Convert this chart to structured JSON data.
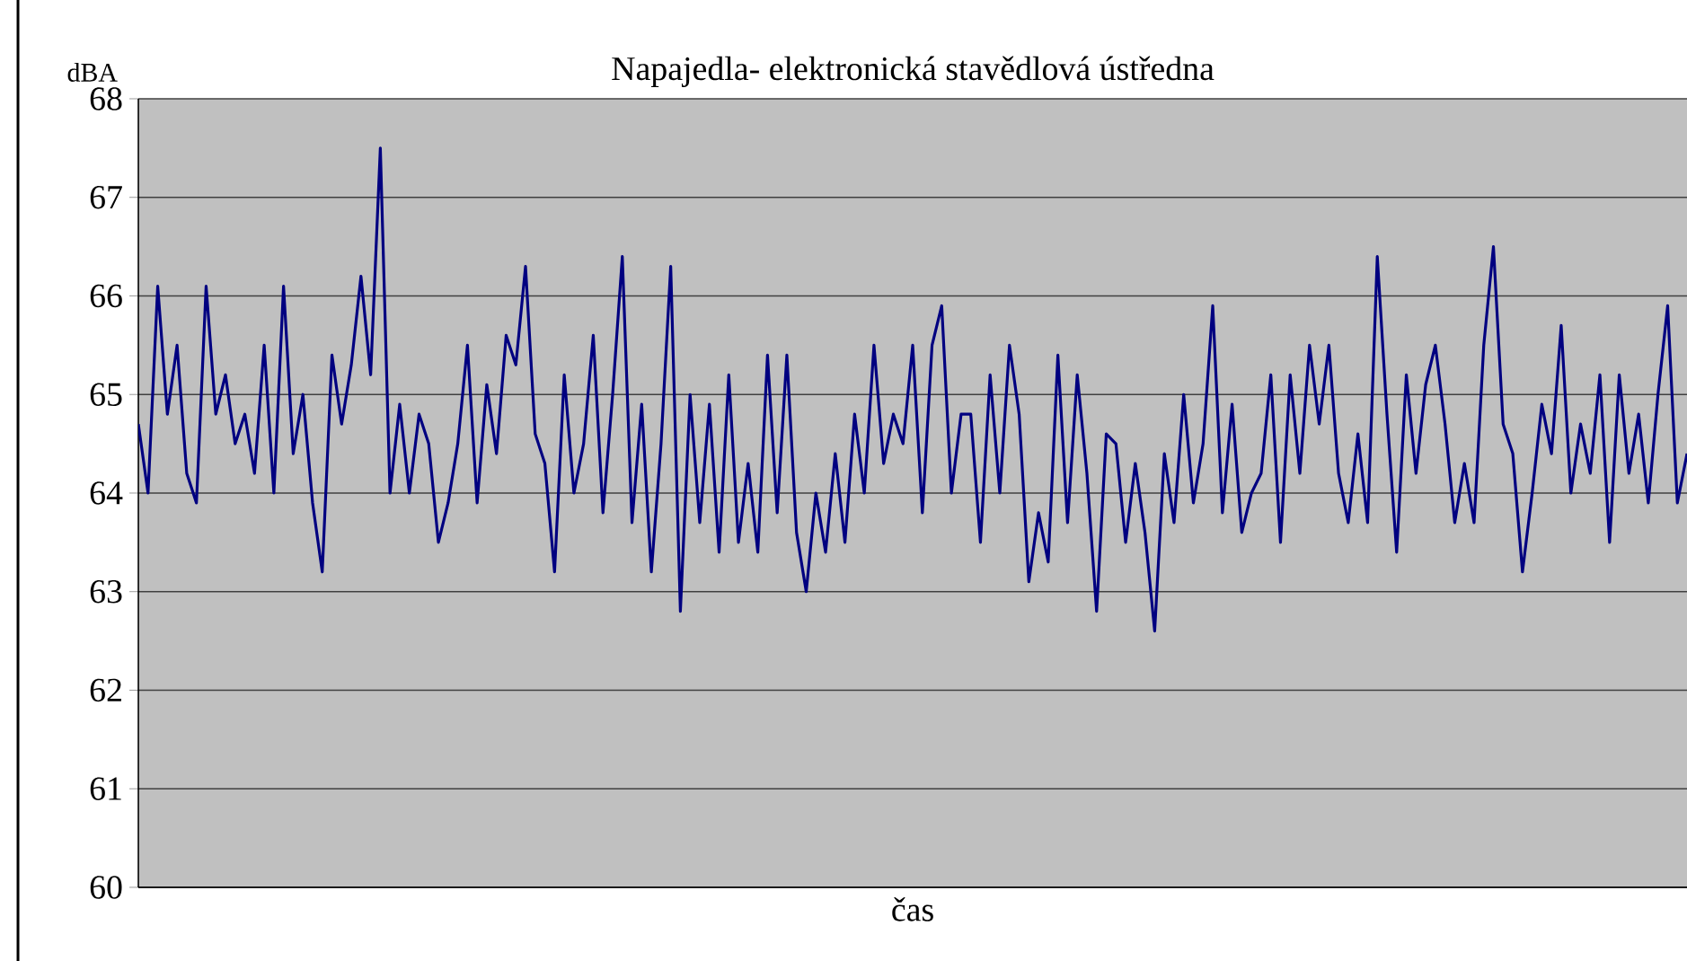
{
  "chart_data": {
    "type": "line",
    "title": "Napajedla- elektronická stavědlová ústředna",
    "xlabel": "čas",
    "ylabel": "dBA",
    "categories": [
      null,
      null,
      null,
      null,
      null,
      null,
      null,
      null,
      null,
      null,
      null,
      null,
      null,
      null,
      null,
      null,
      null,
      null,
      null,
      null,
      null,
      null,
      null,
      null,
      null,
      null,
      null,
      null,
      null,
      null,
      null,
      null,
      null,
      null,
      null,
      null,
      null,
      null,
      null,
      null,
      null,
      null,
      null,
      null,
      null,
      null,
      null,
      null,
      null,
      null,
      null,
      null,
      null,
      null,
      null,
      null,
      null,
      null,
      null,
      null,
      null,
      null,
      null,
      null,
      null,
      null,
      null,
      null,
      null,
      null,
      null,
      null,
      null,
      null,
      null,
      null,
      null,
      null,
      null,
      null,
      null,
      null,
      null,
      null,
      null,
      null,
      null,
      null,
      null,
      null,
      null,
      null,
      null,
      null,
      null,
      null,
      null,
      null,
      null,
      null,
      null,
      null,
      null,
      null,
      null,
      null,
      null,
      null,
      null,
      null,
      null,
      null,
      null,
      null,
      null,
      null,
      null,
      null,
      null,
      null,
      null,
      null,
      null,
      null,
      null,
      null,
      null,
      null,
      null,
      null,
      null,
      null,
      null,
      null,
      null,
      null,
      null,
      null,
      null,
      null,
      null,
      null,
      null,
      null,
      null,
      null,
      null,
      null,
      null,
      null,
      null,
      null,
      null,
      null,
      null,
      null,
      null,
      null,
      null,
      null,
      null
    ],
    "series": [
      {
        "color": "#000080",
        "values": [
          64.7,
          64.0,
          66.1,
          64.8,
          65.5,
          64.2,
          63.9,
          66.1,
          64.8,
          65.2,
          64.5,
          64.8,
          64.2,
          65.5,
          64.0,
          66.1,
          64.4,
          65.0,
          63.9,
          63.2,
          65.4,
          64.7,
          65.3,
          66.2,
          65.2,
          67.5,
          64.0,
          64.9,
          64.0,
          64.8,
          64.5,
          63.5,
          63.9,
          64.5,
          65.5,
          63.9,
          65.1,
          64.4,
          65.6,
          65.3,
          66.3,
          64.6,
          64.3,
          63.2,
          65.2,
          64.0,
          64.5,
          65.6,
          63.8,
          65.0,
          66.4,
          63.7,
          64.9,
          63.2,
          64.5,
          66.3,
          62.8,
          65.0,
          63.7,
          64.9,
          63.4,
          65.2,
          63.5,
          64.3,
          63.4,
          65.4,
          63.8,
          65.4,
          63.6,
          63.0,
          64.0,
          63.4,
          64.4,
          63.5,
          64.8,
          64.0,
          65.5,
          64.3,
          64.8,
          64.5,
          65.5,
          63.8,
          65.5,
          65.9,
          64.0,
          64.8,
          64.8,
          63.5,
          65.2,
          64.0,
          65.5,
          64.8,
          63.1,
          63.8,
          63.3,
          65.4,
          63.7,
          65.2,
          64.2,
          62.8,
          64.6,
          64.5,
          63.5,
          64.3,
          63.6,
          62.6,
          64.4,
          63.7,
          65.0,
          63.9,
          64.5,
          65.9,
          63.8,
          64.9,
          63.6,
          64.0,
          64.2,
          65.2,
          63.5,
          65.2,
          64.2,
          65.5,
          64.7,
          65.5,
          64.2,
          63.7,
          64.6,
          63.7,
          66.4,
          64.8,
          63.4,
          65.2,
          64.2,
          65.1,
          65.5,
          64.7,
          63.7,
          64.3,
          63.7,
          65.5,
          66.5,
          64.7,
          64.4,
          63.2,
          64.0,
          64.9,
          64.4,
          65.7,
          64.0,
          64.7,
          64.2,
          65.2,
          63.5,
          65.2,
          64.2,
          64.8,
          63.9,
          65.0,
          65.9,
          63.9,
          64.4
        ]
      }
    ],
    "ylim": [
      60,
      68
    ],
    "yticks": [
      60,
      61,
      62,
      63,
      64,
      65,
      66,
      67,
      68
    ],
    "grid": "y",
    "tick_labels": "y"
  }
}
